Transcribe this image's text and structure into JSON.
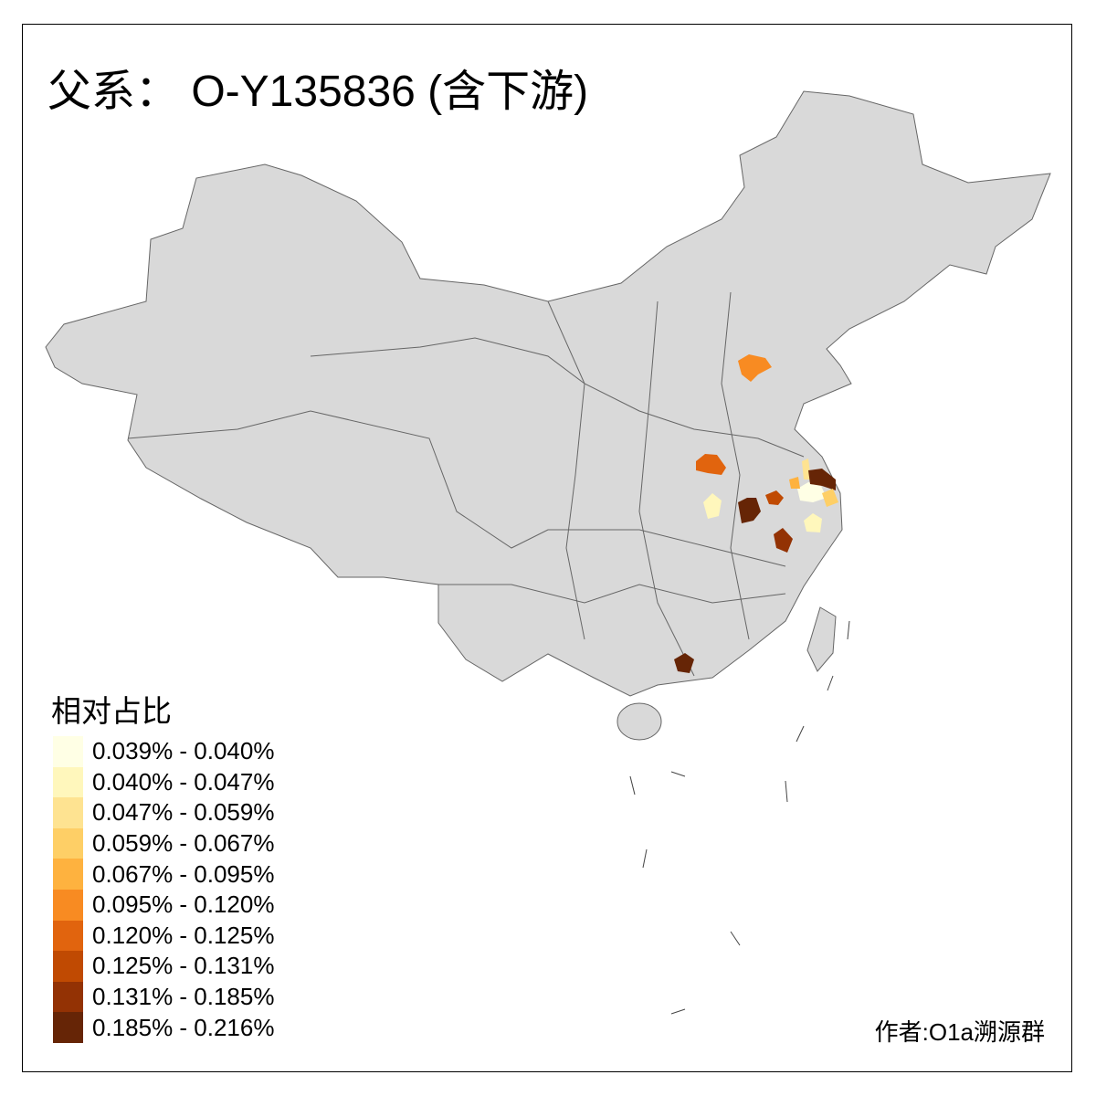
{
  "title": "父系： O-Y135836 (含下游)",
  "legend": {
    "title": "相对占比",
    "bins": [
      {
        "label": "0.039% - 0.040%",
        "color": "#FFFFE5"
      },
      {
        "label": "0.040% - 0.047%",
        "color": "#FFF7BC"
      },
      {
        "label": "0.047% - 0.059%",
        "color": "#FEE391"
      },
      {
        "label": "0.059% - 0.067%",
        "color": "#FECF66"
      },
      {
        "label": "0.067% - 0.095%",
        "color": "#FEB23F"
      },
      {
        "label": "0.095% - 0.120%",
        "color": "#F88B22"
      },
      {
        "label": "0.120% - 0.125%",
        "color": "#E1640E"
      },
      {
        "label": "0.125% - 0.131%",
        "color": "#C04A02"
      },
      {
        "label": "0.131% - 0.185%",
        "color": "#933204"
      },
      {
        "label": "0.185% - 0.216%",
        "color": "#662506"
      }
    ]
  },
  "map": {
    "base_fill": "#D9D9D9",
    "border_color": "#666666",
    "highlighted_region_bins": [
      5,
      6,
      1,
      9,
      7,
      0,
      4,
      2,
      9,
      3,
      1,
      8
    ]
  },
  "credit": "作者:O1a溯源群"
}
